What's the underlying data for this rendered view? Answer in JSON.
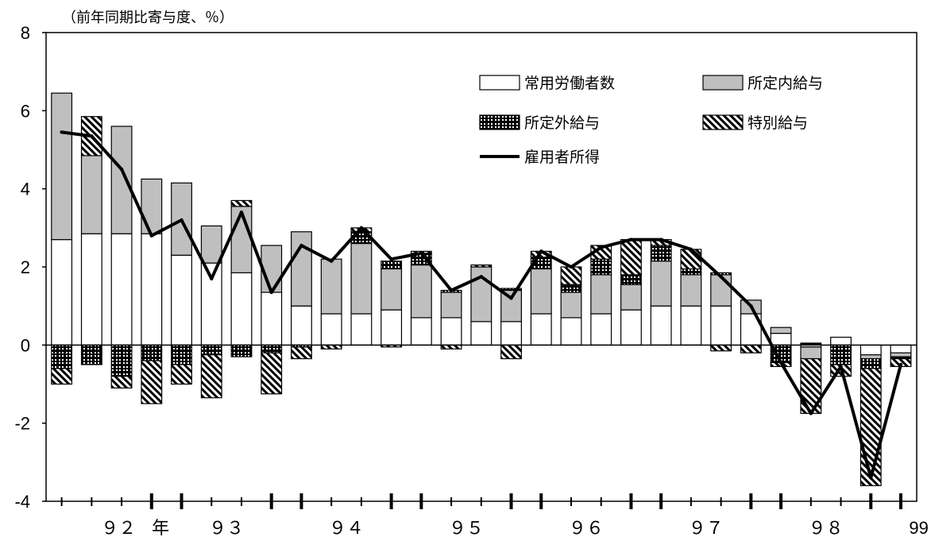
{
  "chart_data": {
    "type": "bar",
    "unit_label": "（前年同期比寄与度、％）",
    "ylim": [
      -4,
      8
    ],
    "yticks": [
      -4,
      -2,
      0,
      2,
      4,
      6,
      8
    ],
    "n_periods": 29,
    "x_tick_labels": [
      {
        "text": "９２",
        "at": 1.9
      },
      {
        "text": "年",
        "at": 3.3
      },
      {
        "text": "９３",
        "at": 5.5
      },
      {
        "text": "９４",
        "at": 9.5
      },
      {
        "text": "９５",
        "at": 13.5
      },
      {
        "text": "９６",
        "at": 17.5
      },
      {
        "text": "９７",
        "at": 21.5
      },
      {
        "text": "９８",
        "at": 25.5
      },
      {
        "text": "99",
        "at": 28.6
      }
    ],
    "legend": {
      "placement": "top-right",
      "items": [
        {
          "label": "常用労働者数",
          "kind": "white"
        },
        {
          "label": "所定内給与",
          "kind": "gray"
        },
        {
          "label": "所定外給与",
          "kind": "grid"
        },
        {
          "label": "特別給与",
          "kind": "hatch"
        },
        {
          "label": "雇用者所得",
          "kind": "line"
        }
      ]
    },
    "series": [
      {
        "name": "常用労働者数",
        "kind": "white",
        "values": [
          2.7,
          2.85,
          2.85,
          2.85,
          2.3,
          2.1,
          1.85,
          1.35,
          1.0,
          0.8,
          0.8,
          0.9,
          0.7,
          0.7,
          0.6,
          0.6,
          0.8,
          0.7,
          0.8,
          0.9,
          1.0,
          1.0,
          1.0,
          0.8,
          0.3,
          -0.05,
          0.2,
          -0.25,
          -0.2
        ]
      },
      {
        "name": "所定内給与",
        "kind": "gray",
        "values": [
          3.75,
          2.0,
          2.75,
          1.4,
          1.85,
          0.95,
          1.7,
          1.2,
          1.9,
          1.4,
          1.8,
          1.05,
          1.35,
          0.65,
          1.4,
          0.8,
          1.15,
          0.65,
          1.0,
          0.65,
          1.15,
          0.8,
          0.8,
          0.35,
          0.15,
          -0.3,
          0.0,
          -0.1,
          -0.1
        ]
      },
      {
        "name": "所定外給与",
        "kind": "grid",
        "values": [
          -0.6,
          -0.5,
          -0.8,
          -0.4,
          -0.5,
          -0.25,
          -0.3,
          -0.2,
          -0.05,
          0.0,
          0.3,
          0.2,
          0.3,
          0.05,
          0.0,
          0.05,
          0.3,
          0.2,
          0.4,
          0.25,
          0.4,
          0.15,
          0.05,
          0.0,
          -0.45,
          0.05,
          -0.5,
          -0.25,
          -0.05
        ]
      },
      {
        "name": "特別給与",
        "kind": "hatch",
        "values": [
          -0.4,
          1.0,
          -0.3,
          -1.1,
          -0.5,
          -1.1,
          0.15,
          -1.05,
          -0.3,
          -0.1,
          0.1,
          -0.05,
          0.05,
          -0.1,
          0.05,
          -0.35,
          0.15,
          0.45,
          0.35,
          0.9,
          0.15,
          0.5,
          -0.15,
          -0.2,
          -0.1,
          -1.4,
          -0.3,
          -3.0,
          -0.2
        ]
      },
      {
        "name": "雇用者所得",
        "kind": "line",
        "values": [
          5.45,
          5.35,
          4.5,
          2.8,
          3.2,
          1.7,
          3.4,
          1.35,
          2.55,
          2.15,
          3.0,
          2.2,
          2.35,
          1.4,
          1.75,
          1.2,
          2.4,
          2.0,
          2.5,
          2.7,
          2.7,
          2.45,
          1.75,
          1.0,
          -0.45,
          -1.75,
          -0.55,
          -3.4,
          -0.5
        ]
      }
    ]
  }
}
